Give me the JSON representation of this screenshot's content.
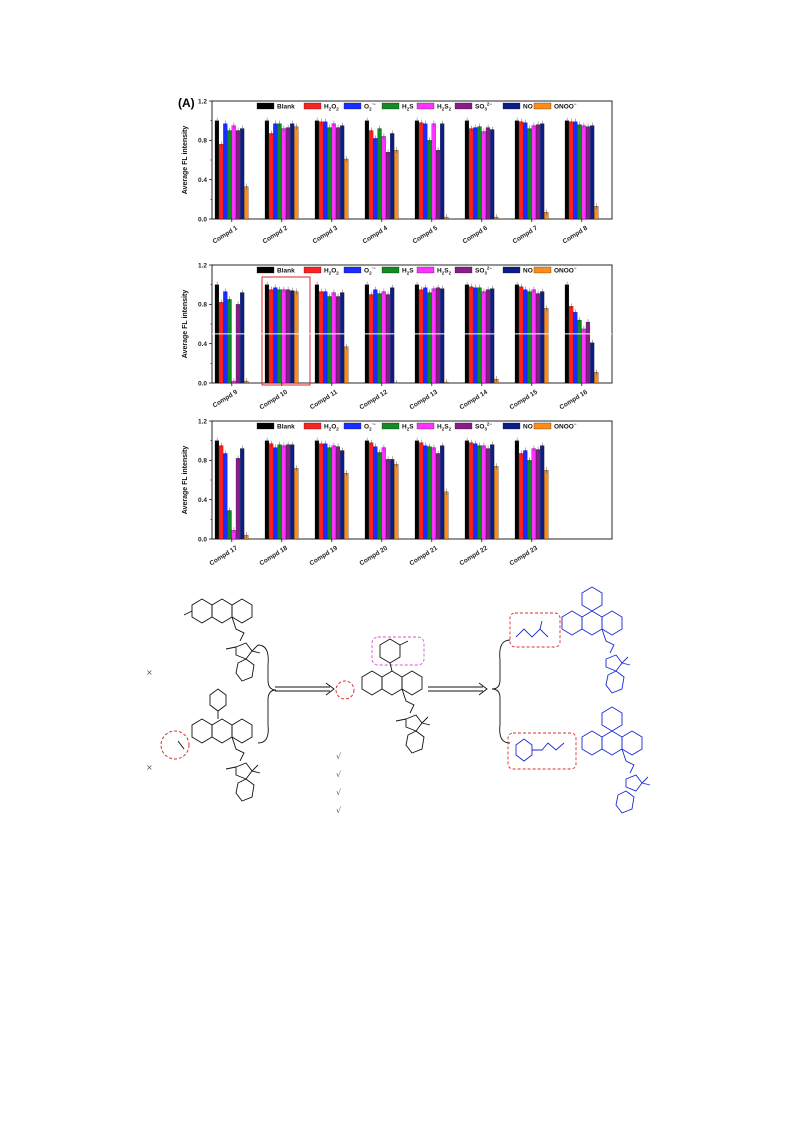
{
  "panel_label": "(A)",
  "legend_items": [
    {
      "label": "Blank",
      "color": "#000000"
    },
    {
      "label": "H2O2",
      "color": "#ff2020"
    },
    {
      "label": "O2·−",
      "color": "#1a2cff"
    },
    {
      "label": "H2S",
      "color": "#138a22"
    },
    {
      "label": "H2S2",
      "color": "#ff33ff"
    },
    {
      "label": "SO3 2−",
      "color": "#8a1c8a"
    },
    {
      "label": "NO",
      "color": "#0b1c8c"
    },
    {
      "label": "ONOO−",
      "color": "#ff8c1a"
    }
  ],
  "chart_data": [
    {
      "type": "bar",
      "ylabel": "Average FL intensity",
      "ylim": [
        0,
        1.2
      ],
      "yticks": [
        "0.0",
        "0.4",
        "0.8",
        "1.2"
      ],
      "categories": [
        "Compd 1",
        "Compd 2",
        "Compd 3",
        "Compd 4",
        "Compd 5",
        "Compd 6",
        "Compd 7",
        "Compd 8"
      ],
      "series": [
        {
          "name": "Blank",
          "values": [
            1.0,
            1.0,
            1.0,
            1.0,
            1.0,
            1.0,
            1.0,
            1.0
          ]
        },
        {
          "name": "H2O2",
          "values": [
            0.76,
            0.87,
            0.99,
            0.9,
            0.98,
            0.92,
            0.99,
            0.99
          ]
        },
        {
          "name": "O2·−",
          "values": [
            0.97,
            0.97,
            0.99,
            0.82,
            0.97,
            0.93,
            0.98,
            0.99
          ]
        },
        {
          "name": "H2S",
          "values": [
            0.9,
            0.97,
            0.93,
            0.92,
            0.8,
            0.94,
            0.92,
            0.96
          ]
        },
        {
          "name": "H2S2",
          "values": [
            0.95,
            0.92,
            0.97,
            0.84,
            0.97,
            0.89,
            0.95,
            0.95
          ]
        },
        {
          "name": "SO3 2−",
          "values": [
            0.9,
            0.93,
            0.93,
            0.68,
            0.7,
            0.93,
            0.96,
            0.94
          ]
        },
        {
          "name": "NO",
          "values": [
            0.92,
            0.97,
            0.95,
            0.87,
            0.97,
            0.91,
            0.97,
            0.95
          ]
        },
        {
          "name": "ONOO−",
          "values": [
            0.33,
            0.94,
            0.61,
            0.7,
            0.02,
            0.02,
            0.07,
            0.13
          ]
        }
      ]
    },
    {
      "type": "bar",
      "ylabel": "Average FL intensity",
      "ylim": [
        0,
        1.2
      ],
      "yticks": [
        "0.0",
        "0.4",
        "0.8",
        "1.2"
      ],
      "categories": [
        "Compd 9",
        "Compd 10",
        "Compd 11",
        "Compd 12",
        "Compd 13",
        "Compd 14",
        "Compd 15",
        "Compd 16"
      ],
      "series": [
        {
          "name": "Blank",
          "values": [
            1.0,
            1.0,
            1.0,
            1.0,
            1.0,
            1.0,
            1.0,
            1.0
          ]
        },
        {
          "name": "H2O2",
          "values": [
            0.82,
            0.95,
            0.93,
            0.9,
            0.95,
            0.98,
            0.98,
            0.78
          ]
        },
        {
          "name": "O2·−",
          "values": [
            0.93,
            0.97,
            0.93,
            0.95,
            0.97,
            0.97,
            0.95,
            0.72
          ]
        },
        {
          "name": "H2S",
          "values": [
            0.85,
            0.95,
            0.88,
            0.91,
            0.92,
            0.97,
            0.93,
            0.64
          ]
        },
        {
          "name": "H2S2",
          "values": [
            0.02,
            0.95,
            0.92,
            0.93,
            0.96,
            0.93,
            0.95,
            0.55
          ]
        },
        {
          "name": "SO3 2−",
          "values": [
            0.8,
            0.95,
            0.88,
            0.9,
            0.97,
            0.95,
            0.91,
            0.62
          ]
        },
        {
          "name": "NO",
          "values": [
            0.92,
            0.94,
            0.92,
            0.97,
            0.96,
            0.96,
            0.93,
            0.41
          ]
        },
        {
          "name": "ONOO−",
          "values": [
            0.02,
            0.93,
            0.37,
            0.0,
            0.01,
            0.04,
            0.76,
            0.11
          ]
        }
      ]
    },
    {
      "type": "bar",
      "ylabel": "Average FL intensity",
      "ylim": [
        0,
        1.2
      ],
      "yticks": [
        "0.0",
        "0.4",
        "0.8",
        "1.2"
      ],
      "categories": [
        "Compd 17",
        "Compd 18",
        "Compd 19",
        "Compd 20",
        "Compd 21",
        "Compd 22",
        "Compd 23"
      ],
      "series": [
        {
          "name": "Blank",
          "values": [
            1.0,
            1.0,
            1.0,
            1.0,
            1.0,
            1.0,
            1.0
          ]
        },
        {
          "name": "H2O2",
          "values": [
            0.95,
            0.97,
            0.97,
            0.98,
            0.98,
            0.98,
            0.87
          ]
        },
        {
          "name": "O2·−",
          "values": [
            0.87,
            0.93,
            0.97,
            0.94,
            0.95,
            0.97,
            0.9
          ]
        },
        {
          "name": "H2S",
          "values": [
            0.29,
            0.96,
            0.93,
            0.88,
            0.94,
            0.95,
            0.8
          ]
        },
        {
          "name": "H2S2",
          "values": [
            0.09,
            0.95,
            0.95,
            0.93,
            0.93,
            0.95,
            0.92
          ]
        },
        {
          "name": "SO3 2−",
          "values": [
            0.82,
            0.96,
            0.94,
            0.81,
            0.87,
            0.92,
            0.91
          ]
        },
        {
          "name": "NO",
          "values": [
            0.92,
            0.96,
            0.9,
            0.81,
            0.95,
            0.96,
            0.95
          ]
        },
        {
          "name": "ONOO−",
          "values": [
            0.04,
            0.72,
            0.67,
            0.76,
            0.48,
            0.74,
            0.7
          ]
        }
      ]
    }
  ],
  "scheme": {
    "cross_mark": "×",
    "check_mark": "√"
  }
}
